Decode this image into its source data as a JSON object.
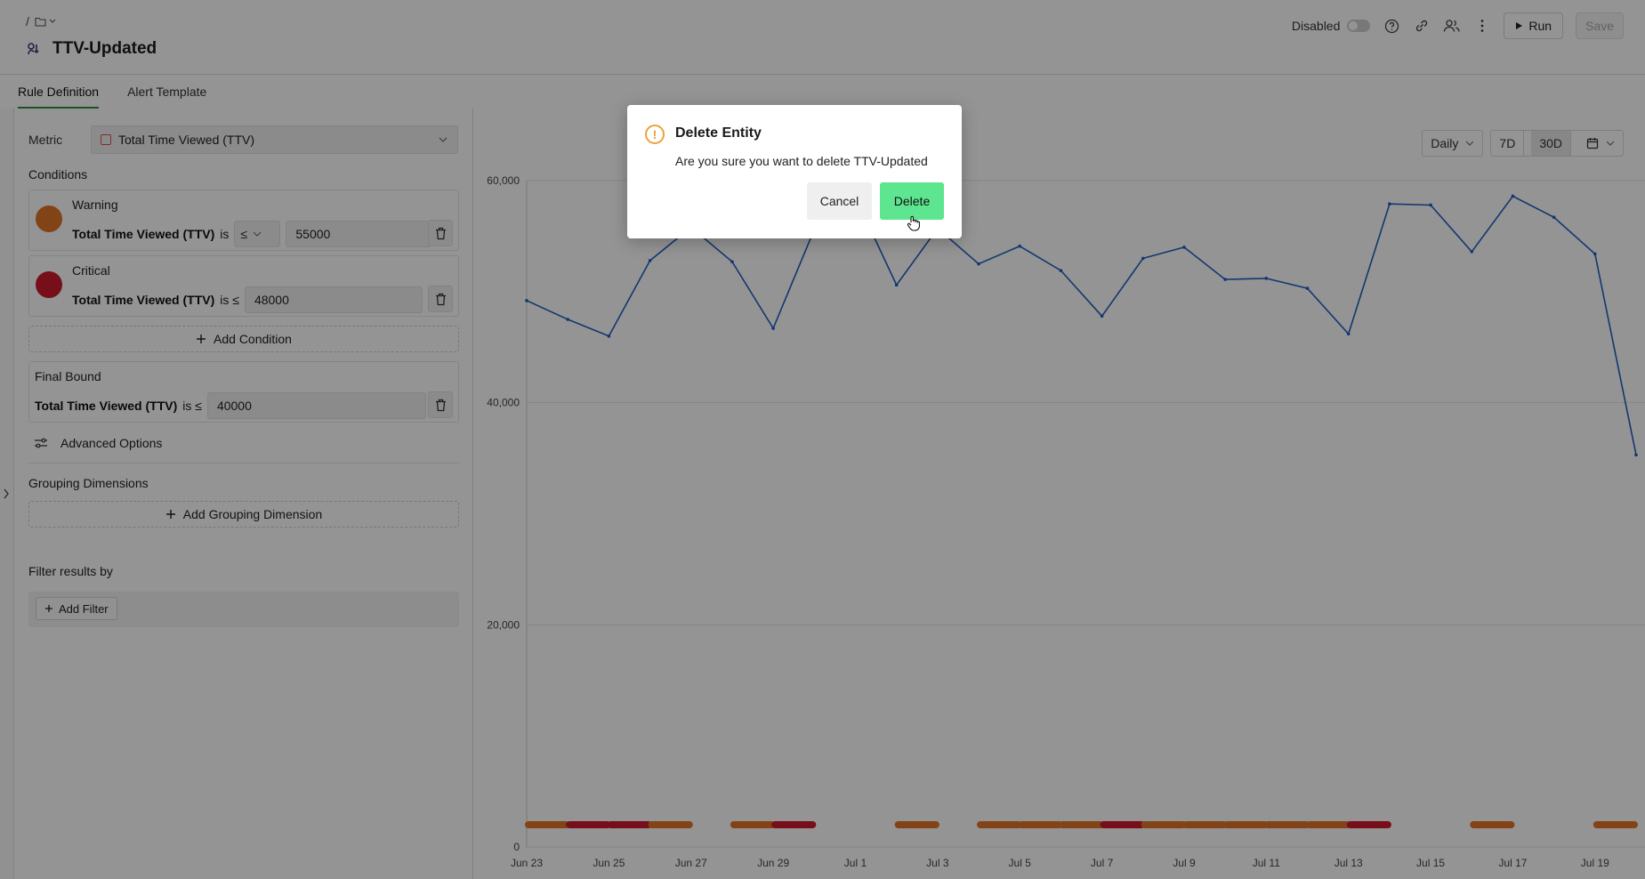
{
  "header": {
    "breadcrumb_root": "/",
    "title": "TTV-Updated",
    "status_label": "Disabled",
    "run_label": "Run",
    "save_label": "Save"
  },
  "tabs": [
    {
      "label": "Rule Definition",
      "active": true
    },
    {
      "label": "Alert Template",
      "active": false
    }
  ],
  "rule": {
    "metric_label": "Metric",
    "metric_value": "Total Time Viewed (TTV)",
    "conditions_title": "Conditions",
    "warning": {
      "name": "Warning",
      "metric": "Total Time Viewed (TTV)",
      "is": "is",
      "op": "≤",
      "value": "55000",
      "color": "#e07428"
    },
    "critical": {
      "name": "Critical",
      "metric": "Total Time Viewed (TTV)",
      "is_op": "is ≤",
      "value": "48000",
      "color": "#cc1a2c"
    },
    "add_condition_label": "Add Condition",
    "final_bound": {
      "name": "Final Bound",
      "metric": "Total Time Viewed (TTV)",
      "is_op": "is ≤",
      "value": "40000"
    },
    "advanced_options_label": "Advanced Options",
    "grouping_title": "Grouping Dimensions",
    "add_grouping_label": "Add Grouping Dimension",
    "filter_title": "Filter results by",
    "add_filter_label": "Add Filter"
  },
  "chart_controls": {
    "granularity": "Daily",
    "range_7d": "7D",
    "range_30d": "30D",
    "selected_range": "30D"
  },
  "chart_data": {
    "type": "line",
    "ylim": [
      0,
      60000
    ],
    "yticks": [
      {
        "value": 0,
        "label": "0"
      },
      {
        "value": 20000,
        "label": "20,000"
      },
      {
        "value": 40000,
        "label": "40,000"
      },
      {
        "value": 60000,
        "label": "60,000"
      }
    ],
    "xticks": [
      "Jun 23",
      "Jun 25",
      "Jun 27",
      "Jun 29",
      "Jul 1",
      "Jul 3",
      "Jul 5",
      "Jul 7",
      "Jul 9",
      "Jul 11",
      "Jul 13",
      "Jul 15",
      "Jul 17",
      "Jul 19"
    ],
    "x_start_label": "Jun 23",
    "line_color": "#1f5fbf",
    "values": [
      49200,
      47500,
      46000,
      52800,
      55800,
      52700,
      46700,
      55600,
      58500,
      50600,
      55700,
      52500,
      54100,
      51900,
      47800,
      53000,
      54000,
      51100,
      51200,
      50300,
      46200,
      57900,
      57800,
      53600,
      58600,
      56700,
      53400,
      35300
    ],
    "alert_segments": [
      {
        "start": 0,
        "severity": "warning"
      },
      {
        "start": 1,
        "severity": "critical"
      },
      {
        "start": 2,
        "severity": "critical"
      },
      {
        "start": 3,
        "severity": "warning"
      },
      {
        "start": 5,
        "severity": "warning"
      },
      {
        "start": 6,
        "severity": "critical"
      },
      {
        "start": 9,
        "severity": "warning"
      },
      {
        "start": 11,
        "severity": "warning"
      },
      {
        "start": 12,
        "severity": "warning"
      },
      {
        "start": 13,
        "severity": "warning"
      },
      {
        "start": 14,
        "severity": "critical"
      },
      {
        "start": 15,
        "severity": "warning"
      },
      {
        "start": 16,
        "severity": "warning"
      },
      {
        "start": 17,
        "severity": "warning"
      },
      {
        "start": 18,
        "severity": "warning"
      },
      {
        "start": 19,
        "severity": "warning"
      },
      {
        "start": 20,
        "severity": "critical"
      },
      {
        "start": 23,
        "severity": "warning"
      },
      {
        "start": 26,
        "severity": "warning"
      }
    ],
    "severity_colors": {
      "warning": "#e07428",
      "critical": "#cc1a2c"
    }
  },
  "modal": {
    "title": "Delete Entity",
    "message": "Are you sure you want to delete TTV-Updated",
    "cancel_label": "Cancel",
    "delete_label": "Delete"
  }
}
